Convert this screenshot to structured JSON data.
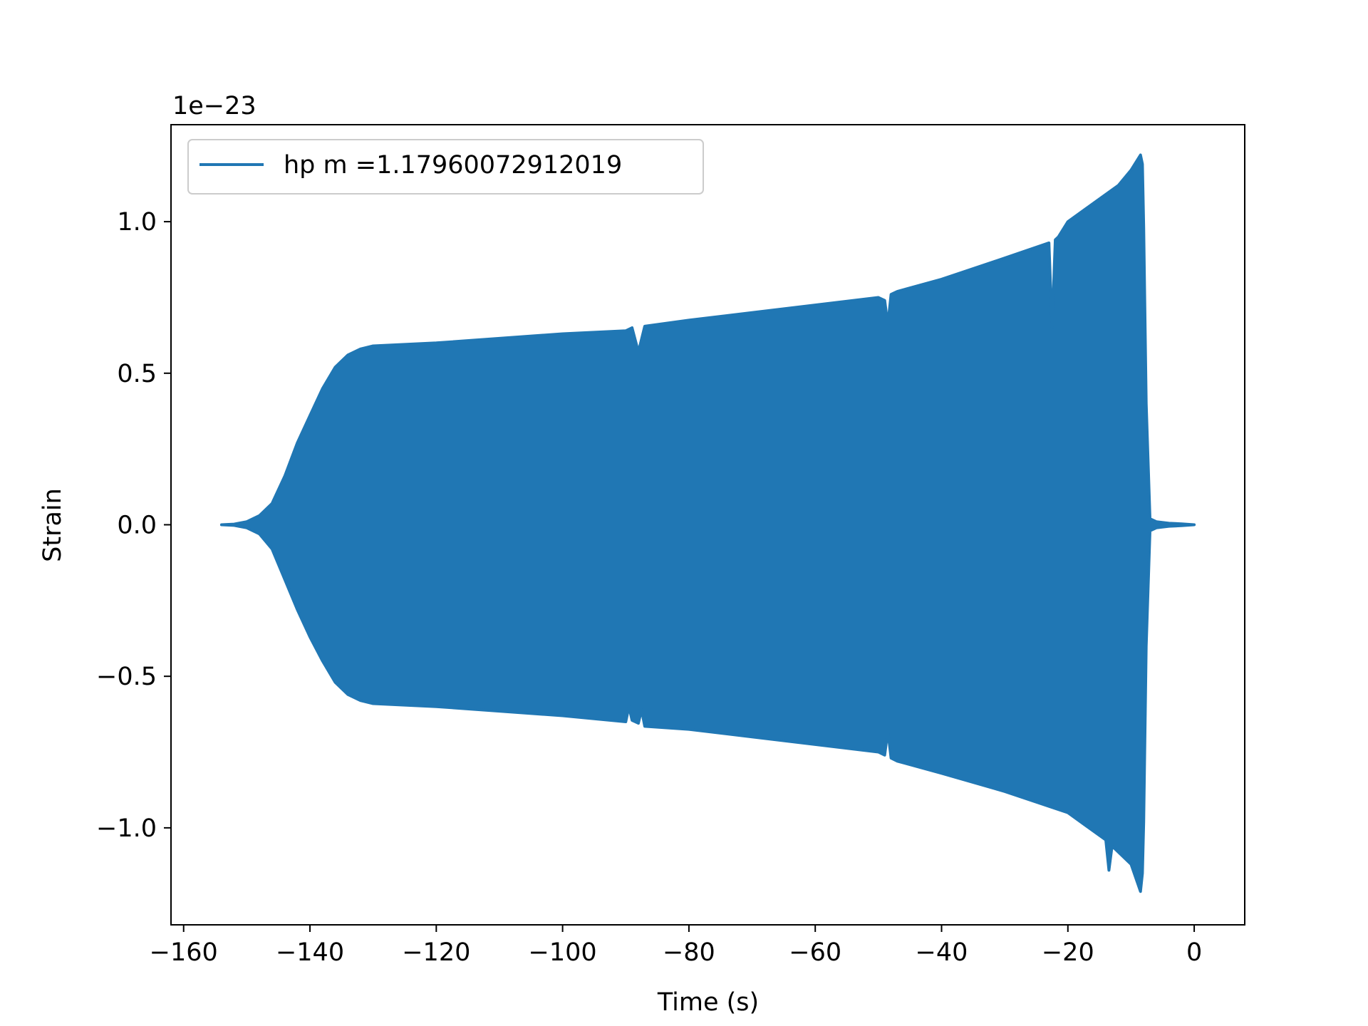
{
  "chart_data": {
    "type": "line",
    "xlabel": "Time (s)",
    "ylabel": "Strain",
    "offset_text": "1e−23",
    "xlim": [
      -162,
      8
    ],
    "ylim": [
      -1.32,
      1.32
    ],
    "xticks": [
      -160,
      -140,
      -120,
      -100,
      -80,
      -60,
      -40,
      -20,
      0
    ],
    "xtick_labels": [
      "−160",
      "−140",
      "−120",
      "−100",
      "−80",
      "−60",
      "−40",
      "−20",
      "0"
    ],
    "yticks": [
      1.0,
      0.5,
      0.0,
      -0.5,
      -1.0
    ],
    "ytick_labels": [
      "1.0",
      "0.5",
      "0.0",
      "−0.5",
      "−1.0"
    ],
    "grid": false,
    "legend_position": "top-left",
    "series": [
      {
        "name": "hp m =1.17960072912019",
        "color": "#2077b4",
        "envelope_upper": {
          "x": [
            -154.0,
            -152.0,
            -150.0,
            -148.0,
            -146.0,
            -144.0,
            -142.0,
            -140.0,
            -138.0,
            -136.0,
            -134.0,
            -132.0,
            -130.0,
            -120.0,
            -110.0,
            -100.0,
            -90.0,
            -89.0,
            -88.0,
            -87.0,
            -80.0,
            -70.0,
            -60.0,
            -50.0,
            -49.0,
            -48.5,
            -48.0,
            -47.0,
            -40.0,
            -30.0,
            -23.0,
            -22.5,
            -22.0,
            -21.5,
            -20.0,
            -16.0,
            -12.0,
            -10.0,
            -8.5,
            -8.2,
            -8.0,
            -7.6,
            -7.0,
            -6.0,
            -4.0,
            -2.0,
            0.0
          ],
          "y": [
            0.0,
            0.002,
            0.01,
            0.03,
            0.07,
            0.16,
            0.27,
            0.36,
            0.45,
            0.52,
            0.56,
            0.58,
            0.59,
            0.6,
            0.615,
            0.63,
            0.64,
            0.65,
            0.57,
            0.655,
            0.675,
            0.7,
            0.725,
            0.75,
            0.74,
            0.66,
            0.76,
            0.77,
            0.81,
            0.88,
            0.93,
            0.65,
            0.94,
            0.95,
            1.0,
            1.06,
            1.12,
            1.17,
            1.22,
            1.19,
            0.98,
            0.4,
            0.02,
            0.01,
            0.005,
            0.003,
            0.0
          ]
        },
        "envelope_lower": {
          "x": [
            -154.0,
            -152.0,
            -150.0,
            -148.0,
            -146.0,
            -144.0,
            -142.0,
            -140.0,
            -138.0,
            -136.0,
            -134.0,
            -132.0,
            -130.0,
            -120.0,
            -110.0,
            -100.0,
            -90.0,
            -89.5,
            -89.0,
            -88.0,
            -87.5,
            -87.0,
            -80.0,
            -70.0,
            -60.0,
            -50.0,
            -49.0,
            -48.5,
            -48.0,
            -47.0,
            -40.0,
            -30.0,
            -20.0,
            -16.0,
            -14.0,
            -13.5,
            -13.0,
            -10.0,
            -8.5,
            -8.2,
            -8.0,
            -7.6,
            -7.0,
            -6.0,
            -4.0,
            -2.0,
            0.0
          ],
          "y": [
            0.0,
            -0.002,
            -0.01,
            -0.03,
            -0.08,
            -0.18,
            -0.28,
            -0.37,
            -0.45,
            -0.52,
            -0.56,
            -0.58,
            -0.59,
            -0.6,
            -0.615,
            -0.63,
            -0.65,
            -0.6,
            -0.645,
            -0.655,
            -0.61,
            -0.665,
            -0.675,
            -0.7,
            -0.725,
            -0.75,
            -0.76,
            -0.68,
            -0.77,
            -0.78,
            -0.82,
            -0.88,
            -0.95,
            -1.01,
            -1.04,
            -1.14,
            -1.06,
            -1.12,
            -1.21,
            -1.15,
            -0.98,
            -0.4,
            -0.02,
            -0.01,
            -0.005,
            -0.003,
            0.0
          ]
        }
      }
    ]
  }
}
